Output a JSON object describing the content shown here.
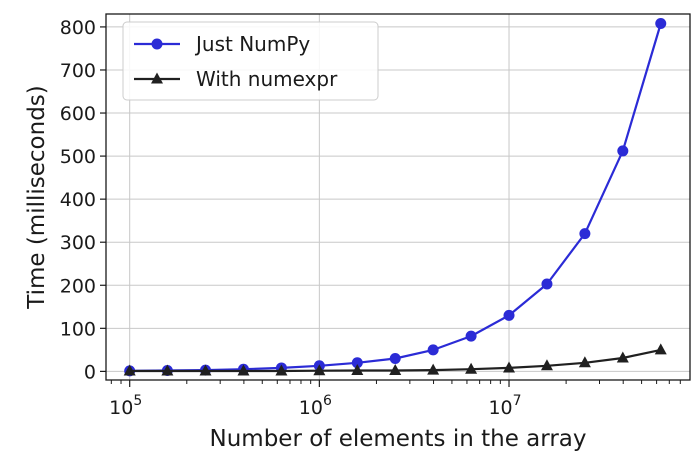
{
  "chart_data": {
    "type": "line",
    "title": "",
    "xlabel": "Number of elements in the array",
    "ylabel": "Time (milliseconds)",
    "xscale": "log",
    "xlim": [
      75000,
      90000000
    ],
    "ylim": [
      -20,
      830
    ],
    "grid": true,
    "legend_position": "top-left",
    "x_ticks": [
      {
        "value": 100000,
        "base": "10",
        "exp": "5"
      },
      {
        "value": 1000000,
        "base": "10",
        "exp": "6"
      },
      {
        "value": 10000000,
        "base": "10",
        "exp": "7"
      }
    ],
    "y_ticks": [
      0,
      100,
      200,
      300,
      400,
      500,
      600,
      700,
      800
    ],
    "series": [
      {
        "name": "Just NumPy",
        "color": "#2b2bd6",
        "marker": "circle",
        "points": [
          [
            100000,
            1.3
          ],
          [
            158000,
            2
          ],
          [
            251000,
            3
          ],
          [
            398000,
            5
          ],
          [
            631000,
            8
          ],
          [
            1000000,
            13
          ],
          [
            1585000,
            20
          ],
          [
            2512000,
            30
          ],
          [
            3981000,
            50
          ],
          [
            6310000,
            82
          ],
          [
            10000000,
            130
          ],
          [
            15850000,
            203
          ],
          [
            25120000,
            320
          ],
          [
            39810000,
            512
          ],
          [
            63100000,
            808
          ]
        ]
      },
      {
        "name": "With numexpr",
        "color": "#202020",
        "marker": "triangle",
        "points": [
          [
            100000,
            1
          ],
          [
            158000,
            1
          ],
          [
            251000,
            1
          ],
          [
            398000,
            1
          ],
          [
            631000,
            1
          ],
          [
            1000000,
            1.5
          ],
          [
            1585000,
            2
          ],
          [
            2512000,
            2
          ],
          [
            3981000,
            3
          ],
          [
            6310000,
            5
          ],
          [
            10000000,
            8
          ],
          [
            15850000,
            13
          ],
          [
            25120000,
            20
          ],
          [
            39810000,
            31
          ],
          [
            63100000,
            50
          ]
        ]
      }
    ]
  }
}
